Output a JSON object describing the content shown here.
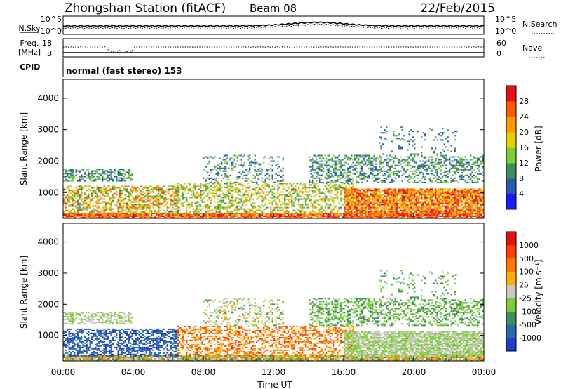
{
  "header": {
    "station": "Zhongshan Station (fitACF)",
    "beam": "Beam 08",
    "date": "22/Feb/2015"
  },
  "noise_panel": {
    "left_label": "N.Sky",
    "right_label": "N.Search",
    "left_ticks": [
      "10^5",
      "10^0"
    ],
    "right_ticks": [
      "10^5",
      "10^0"
    ]
  },
  "freq_panel": {
    "left_label_line1": "Freq.",
    "left_label_line2": "[MHz]",
    "right_label": "Nave",
    "left_ticks": [
      "18",
      "8"
    ],
    "right_ticks": [
      "60",
      "0"
    ]
  },
  "cpid": {
    "label": "CPID",
    "text": "normal (fast stereo) 153"
  },
  "chart_data": [
    {
      "type": "heatmap",
      "title": "",
      "xlabel": "",
      "ylabel": "Slant Range [km]",
      "xlim": [
        0,
        24
      ],
      "ylim": [
        180,
        4600
      ],
      "y_ticks": [
        "1000",
        "2000",
        "3000",
        "4000"
      ],
      "colorbar": {
        "label": "Power [dB]",
        "ticks": [
          "4",
          "8",
          "12",
          "16",
          "20",
          "24",
          "28"
        ],
        "colors": [
          "#1a1aff",
          "#2a5ab0",
          "#3f8f5a",
          "#7fcc3a",
          "#e8d000",
          "#ff9a00",
          "#ff5a00",
          "#e81010"
        ]
      }
    },
    {
      "type": "heatmap",
      "title": "",
      "xlabel": "Time UT",
      "ylabel": "Slant Range [km]",
      "xlim": [
        0,
        24
      ],
      "ylim": [
        180,
        4600
      ],
      "y_ticks": [
        "1000",
        "2000",
        "3000",
        "4000"
      ],
      "x_ticks": [
        "00:00",
        "04:00",
        "08:00",
        "12:00",
        "16:00",
        "20:00",
        "00:00"
      ],
      "colorbar": {
        "label": "Velocity [m s⁻¹]",
        "ticks": [
          "1000",
          "500",
          "100",
          "25",
          "-25",
          "-100",
          "-500",
          "-1000"
        ],
        "colors": [
          "#1a3fd0",
          "#2a6aa8",
          "#3f8f5a",
          "#7fcc3a",
          "#c8c8c0",
          "#ffb000",
          "#ff7a00",
          "#ff4000",
          "#e81010"
        ]
      }
    }
  ]
}
